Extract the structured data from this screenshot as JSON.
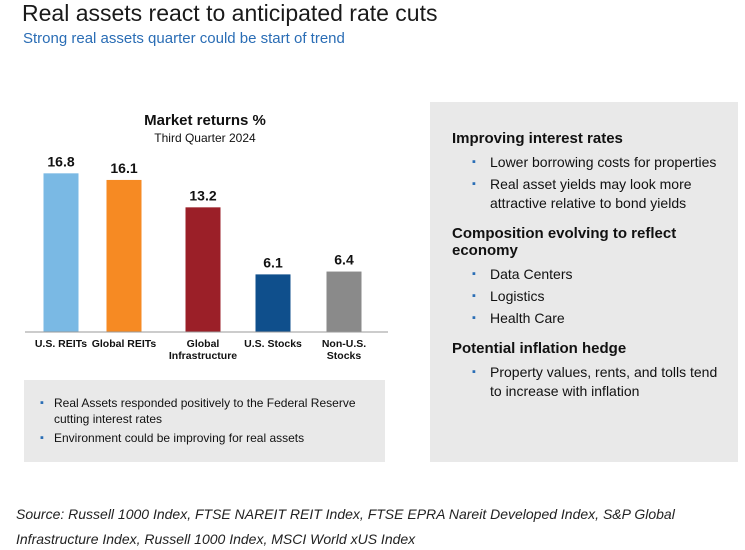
{
  "header": {
    "title": "Real assets react to anticipated rate cuts",
    "subtitle": "Strong real assets quarter could be start of trend"
  },
  "chart_data": {
    "type": "bar",
    "title": "Market returns %",
    "subtitle": "Third Quarter 2024",
    "categories": [
      {
        "line1": "U.S. REITs",
        "line2": ""
      },
      {
        "line1": "Global REITs",
        "line2": ""
      },
      {
        "line1": "Global",
        "line2": "Infrastructure"
      },
      {
        "line1": "U.S. Stocks",
        "line2": ""
      },
      {
        "line1": "Non-U.S.",
        "line2": "Stocks"
      }
    ],
    "values": [
      16.8,
      16.1,
      13.2,
      6.1,
      6.4
    ],
    "value_labels": [
      "16.8",
      "16.1",
      "13.2",
      "6.1",
      "6.4"
    ],
    "colors": [
      "#7ab9e4",
      "#f68a23",
      "#9b1f28",
      "#0f4f8c",
      "#8a8a8a"
    ],
    "ylim": [
      0,
      18
    ],
    "grid": false,
    "legend": "none"
  },
  "left_bullets": [
    "Real Assets responded positively to the Federal Reserve cutting interest rates",
    "Environment could be improving for real assets"
  ],
  "right_panel": {
    "sections": [
      {
        "heading": "Improving interest rates",
        "bullets": [
          "Lower borrowing costs for properties",
          "Real asset yields may look more attractive relative to bond yields"
        ]
      },
      {
        "heading": "Composition evolving to reflect economy",
        "bullets": [
          "Data Centers",
          "Logistics",
          "Health Care"
        ]
      },
      {
        "heading": "Potential inflation hedge",
        "bullets": [
          "Property values, rents, and tolls tend to increase with inflation"
        ]
      }
    ]
  },
  "bullet_glyph": "▪",
  "source": "Source: Russell 1000 Index, FTSE NAREIT REIT Index, FTSE EPRA Nareit Developed Index, S&P Global Infrastructure Index, Russell 1000 Index, MSCI World xUS Index"
}
